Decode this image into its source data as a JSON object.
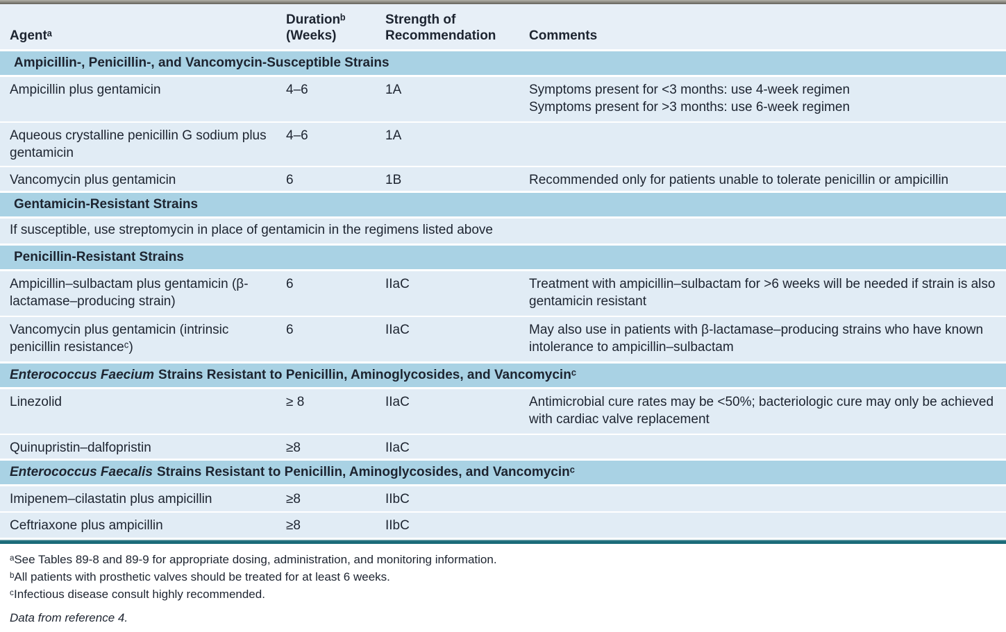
{
  "colors": {
    "section_header_bg": "#a9d2e4",
    "data_row_bg": "#e1ecf5",
    "column_header_bg": "#e7eff7",
    "rule_teal": "#1b6b79",
    "text": "#1d2430"
  },
  "header": {
    "agent": "Agentᵃ",
    "duration": "Durationᵇ\n(Weeks)",
    "strength": "Strength of\nRecommendation",
    "comments": "Comments"
  },
  "sections": [
    {
      "title_italic": "",
      "title_rest": "Ampicillin-, Penicillin-, and Vancomycin-Susceptible Strains",
      "rows": [
        {
          "agent": "Ampicillin plus gentamicin",
          "duration": "4–6",
          "strength": "1A",
          "comments": [
            "Symptoms present for <3 months: use 4-week regimen",
            "Symptoms present for >3 months: use 6-week regimen"
          ]
        },
        {
          "agent": "Aqueous crystalline penicillin G sodium plus gentamicin",
          "duration": "4–6",
          "strength": "1A",
          "comments": [
            "",
            ""
          ]
        },
        {
          "agent": "Vancomycin plus gentamicin",
          "duration": "6",
          "strength": "1B",
          "comments": [
            "Recommended only for patients unable to tolerate penicillin or ampicillin",
            ""
          ]
        }
      ]
    },
    {
      "title_italic": "",
      "title_rest": "Gentamicin-Resistant Strains",
      "note": "If susceptible, use streptomycin in place of gentamicin in the regimens listed above"
    },
    {
      "title_italic": "",
      "title_rest": "Penicillin-Resistant Strains",
      "rows": [
        {
          "agent": "Ampicillin–sulbactam plus gentamicin (β-lactamase–producing strain)",
          "duration": "6",
          "strength": "IIaC",
          "comments": [
            "Treatment with ampicillin–sulbactam for >6 weeks will be needed if strain is also gentamicin resistant",
            ""
          ]
        },
        {
          "agent": "Vancomycin plus gentamicin (intrinsic penicillin resistanceᶜ)",
          "duration": "6",
          "strength": "IIaC",
          "comments": [
            "May also use in patients with β-lactamase–producing strains who have known intolerance to ampicillin–sulbactam",
            ""
          ]
        }
      ]
    },
    {
      "title_italic": "Enterococcus Faecium",
      "title_rest": "Strains Resistant to Penicillin, Aminoglycosides, and Vancomycinᶜ",
      "rows": [
        {
          "agent": "Linezolid",
          "duration": "≥ 8",
          "strength": "IIaC",
          "comments": [
            "Antimicrobial cure rates may be <50%; bacteriologic cure may only be achieved with cardiac valve replacement",
            ""
          ]
        },
        {
          "agent": "Quinupristin–dalfopristin",
          "duration": "≥8",
          "strength": "IIaC",
          "comments": [
            "",
            ""
          ]
        }
      ]
    },
    {
      "title_italic": "Enterococcus Faecalis",
      "title_rest": "Strains Resistant to Penicillin, Aminoglycosides, and Vancomycinᶜ",
      "rows": [
        {
          "agent": "Imipenem–cilastatin plus ampicillin",
          "duration": "≥8",
          "strength": "IIbC",
          "comments": [
            "",
            ""
          ]
        },
        {
          "agent": "Ceftriaxone plus ampicillin",
          "duration": "≥8",
          "strength": "IIbC",
          "comments": [
            "",
            ""
          ]
        }
      ]
    }
  ],
  "footnotes": [
    "ᵃSee Tables 89-8 and 89-9 for appropriate dosing, administration, and monitoring information.",
    "ᵇAll patients with prosthetic valves should be treated for at least 6 weeks.",
    "ᶜInfectious disease consult highly recommended."
  ],
  "source_note": "Data from reference 4."
}
